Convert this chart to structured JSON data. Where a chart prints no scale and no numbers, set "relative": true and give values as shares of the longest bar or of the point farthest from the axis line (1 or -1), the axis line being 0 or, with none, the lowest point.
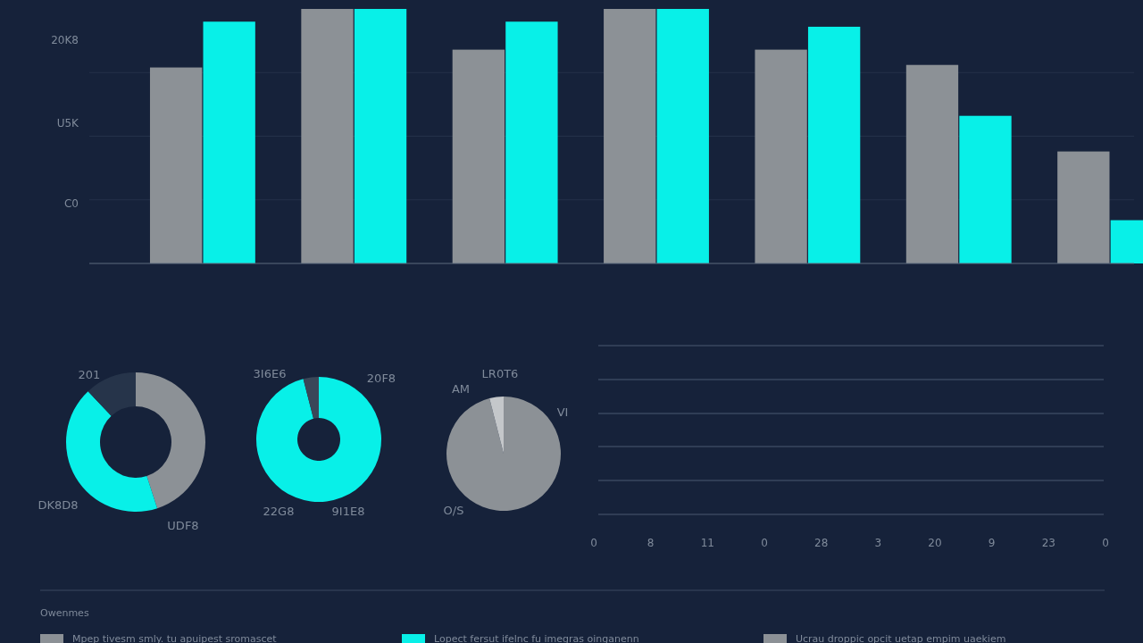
{
  "chart_data": [
    {
      "type": "bar",
      "relative": true,
      "categories": [
        null,
        null,
        null,
        null,
        null,
        null,
        null
      ],
      "series": [
        {
          "name": "Mpep tivesm smly. tu apuipest sromascet",
          "color": "#8c9196",
          "values": [
            0.77,
            1,
            0.84,
            1,
            0.84,
            0.78,
            0.44
          ]
        },
        {
          "name": "Lopect fersut ifelnc fu imegras oinganenn",
          "color": "#08f0e8",
          "values": [
            0.95,
            1,
            0.95,
            1,
            0.93,
            0.58,
            0.17
          ]
        }
      ],
      "legend": "bottom",
      "legend_title": "Owenmes",
      "grid": "y",
      "annotations": [
        "20K8",
        "U5K",
        "C0",
        "Ucrau droppic opcit uetap empim uaekiem"
      ]
    },
    {
      "type": "donut",
      "categories": [
        null,
        null,
        null
      ],
      "values": [
        45,
        43,
        12
      ],
      "colors": [
        "#8c9196",
        "#08f0e8",
        "#26344a"
      ],
      "annotations": [
        "201",
        "UDF8",
        "DK8D8"
      ]
    },
    {
      "type": "donut",
      "categories": [
        null,
        null
      ],
      "values": [
        96,
        4
      ],
      "colors": [
        "#08f0e8",
        "#3a4758"
      ],
      "annotations": [
        "3I6E6",
        "20F8",
        "9I1E8",
        "22G8"
      ]
    },
    {
      "type": "pie",
      "categories": [
        null,
        null
      ],
      "values": [
        96,
        4
      ],
      "colors": [
        "#8c9196",
        "#c4c7ca"
      ],
      "annotations": [
        "LR0T6",
        "VI",
        "O/S",
        "AM"
      ]
    },
    {
      "type": "other",
      "annotations": [
        "0",
        "8",
        "11",
        "0",
        "28",
        "3",
        "20",
        "9",
        "23",
        "0"
      ]
    }
  ]
}
